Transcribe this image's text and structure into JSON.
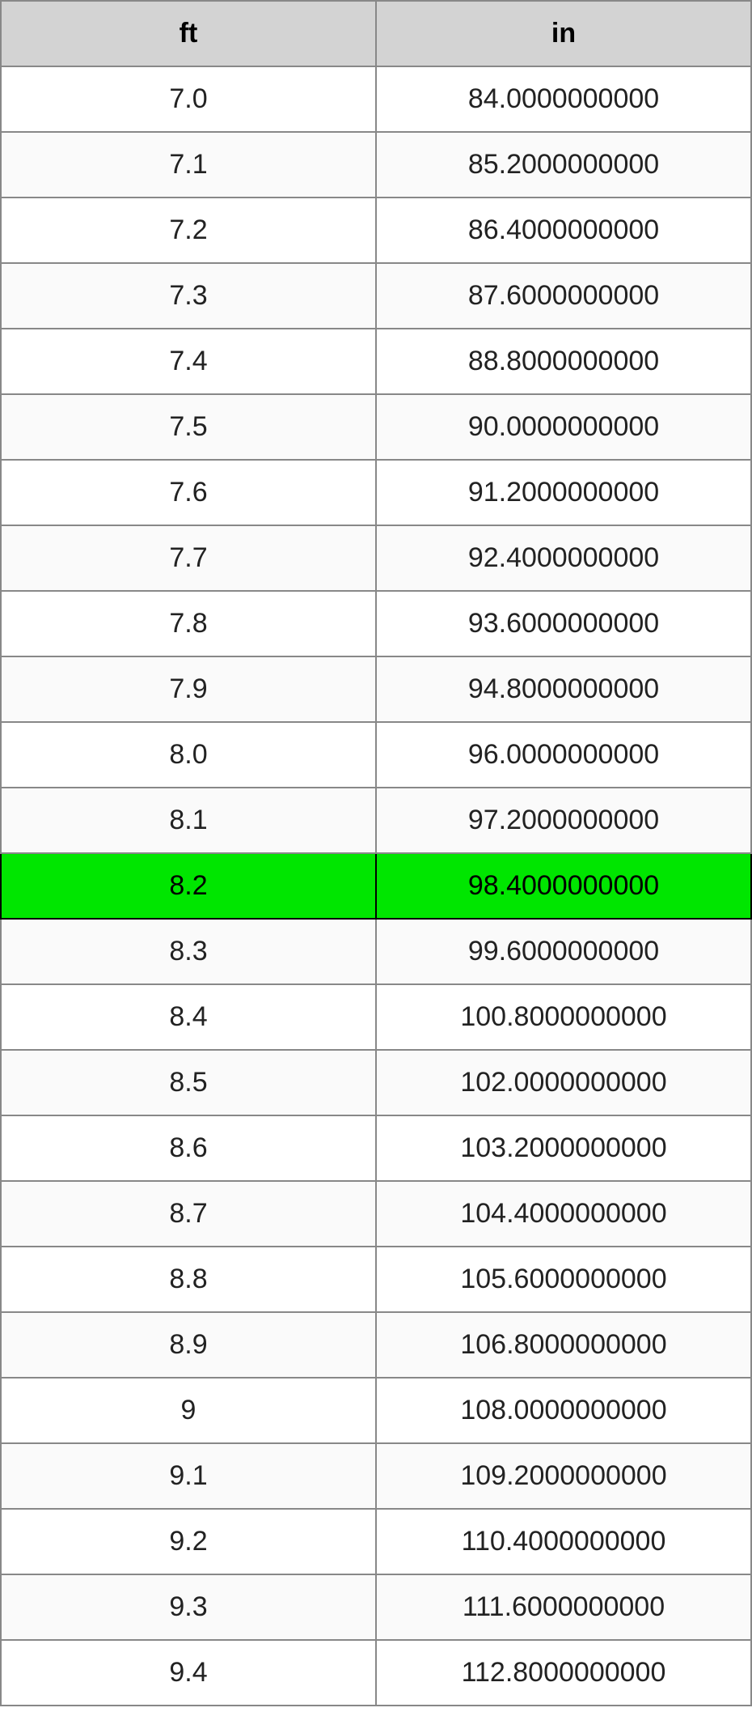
{
  "table": {
    "type": "table",
    "columns": [
      {
        "label": "ft",
        "width_pct": 50,
        "align": "center"
      },
      {
        "label": "in",
        "width_pct": 50,
        "align": "center"
      }
    ],
    "header_bg": "#d3d3d3",
    "header_font_weight": "bold",
    "border_color": "#888888",
    "row_alt_bg": "#fafafa",
    "row_bg": "#ffffff",
    "highlight_bg": "#00e600",
    "highlight_border": "#000000",
    "font_size_pt": 26,
    "rows": [
      {
        "ft": "7.0",
        "in": "84.0000000000",
        "highlight": false
      },
      {
        "ft": "7.1",
        "in": "85.2000000000",
        "highlight": false
      },
      {
        "ft": "7.2",
        "in": "86.4000000000",
        "highlight": false
      },
      {
        "ft": "7.3",
        "in": "87.6000000000",
        "highlight": false
      },
      {
        "ft": "7.4",
        "in": "88.8000000000",
        "highlight": false
      },
      {
        "ft": "7.5",
        "in": "90.0000000000",
        "highlight": false
      },
      {
        "ft": "7.6",
        "in": "91.2000000000",
        "highlight": false
      },
      {
        "ft": "7.7",
        "in": "92.4000000000",
        "highlight": false
      },
      {
        "ft": "7.8",
        "in": "93.6000000000",
        "highlight": false
      },
      {
        "ft": "7.9",
        "in": "94.8000000000",
        "highlight": false
      },
      {
        "ft": "8.0",
        "in": "96.0000000000",
        "highlight": false
      },
      {
        "ft": "8.1",
        "in": "97.2000000000",
        "highlight": false
      },
      {
        "ft": "8.2",
        "in": "98.4000000000",
        "highlight": true
      },
      {
        "ft": "8.3",
        "in": "99.6000000000",
        "highlight": false
      },
      {
        "ft": "8.4",
        "in": "100.8000000000",
        "highlight": false
      },
      {
        "ft": "8.5",
        "in": "102.0000000000",
        "highlight": false
      },
      {
        "ft": "8.6",
        "in": "103.2000000000",
        "highlight": false
      },
      {
        "ft": "8.7",
        "in": "104.4000000000",
        "highlight": false
      },
      {
        "ft": "8.8",
        "in": "105.6000000000",
        "highlight": false
      },
      {
        "ft": "8.9",
        "in": "106.8000000000",
        "highlight": false
      },
      {
        "ft": "9",
        "in": "108.0000000000",
        "highlight": false
      },
      {
        "ft": "9.1",
        "in": "109.2000000000",
        "highlight": false
      },
      {
        "ft": "9.2",
        "in": "110.4000000000",
        "highlight": false
      },
      {
        "ft": "9.3",
        "in": "111.6000000000",
        "highlight": false
      },
      {
        "ft": "9.4",
        "in": "112.8000000000",
        "highlight": false
      }
    ]
  }
}
